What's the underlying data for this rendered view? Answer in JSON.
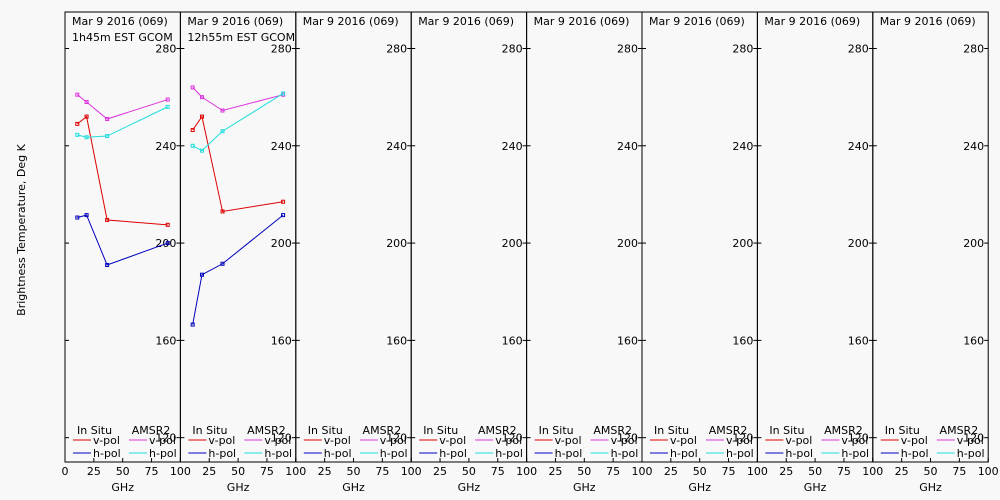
{
  "ylabel": "Brightness Temperature, Deg K",
  "xlabel": "GHz",
  "colors": {
    "insitu_v": "#dd0000",
    "insitu_h": "#0000bb",
    "amsr2_v": "#dd33dd",
    "amsr2_h": "#22dddd",
    "axis": "#000000",
    "background": "#f8f8f8"
  },
  "legend": {
    "insitu": "In Situ",
    "amsr2": "AMSR2",
    "vpol": "v-pol",
    "hpol": "h-pol"
  },
  "chart_data": [
    {
      "type": "line",
      "title": "Mar 9 2016 (069)",
      "subtitle": "1h45m EST GCOM",
      "xlim": [
        0,
        100
      ],
      "ylim": [
        110,
        295
      ],
      "yticks": [
        120,
        160,
        200,
        240,
        280
      ],
      "xticks": [
        0,
        25,
        50,
        75,
        100
      ],
      "series": [
        {
          "name": "In Situ v-pol",
          "x": [
            10.65,
            18.7,
            36.5,
            89
          ],
          "y": [
            249,
            252,
            209.5,
            207.5
          ]
        },
        {
          "name": "In Situ h-pol",
          "x": [
            10.65,
            18.7,
            36.5,
            89
          ],
          "y": [
            210.5,
            211.5,
            191,
            200
          ]
        },
        {
          "name": "AMSR2 v-pol",
          "x": [
            10.65,
            18.7,
            36.5,
            89
          ],
          "y": [
            261,
            258,
            251,
            259
          ]
        },
        {
          "name": "AMSR2 h-pol",
          "x": [
            10.65,
            18.7,
            36.5,
            89
          ],
          "y": [
            244.5,
            243.5,
            244,
            256
          ]
        }
      ]
    },
    {
      "type": "line",
      "title": "Mar 9 2016 (069)",
      "subtitle": "12h55m EST GCOM",
      "xlim": [
        0,
        100
      ],
      "ylim": [
        110,
        295
      ],
      "yticks": [
        120,
        160,
        200,
        240,
        280
      ],
      "xticks": [
        0,
        25,
        50,
        75,
        100
      ],
      "series": [
        {
          "name": "In Situ v-pol",
          "x": [
            10.65,
            18.7,
            36.5,
            89
          ],
          "y": [
            246.5,
            252,
            213,
            217
          ]
        },
        {
          "name": "In Situ h-pol",
          "x": [
            10.65,
            18.7,
            36.5,
            89
          ],
          "y": [
            166.5,
            187,
            191.5,
            211.5
          ]
        },
        {
          "name": "AMSR2 v-pol",
          "x": [
            10.65,
            18.7,
            36.5,
            89
          ],
          "y": [
            264,
            260,
            254.5,
            261
          ]
        },
        {
          "name": "AMSR2 h-pol",
          "x": [
            10.65,
            18.7,
            36.5,
            89
          ],
          "y": [
            240,
            238,
            246,
            261.5
          ]
        }
      ]
    },
    {
      "type": "line",
      "title": "Mar 9 2016 (069)",
      "subtitle": "",
      "xlim": [
        0,
        100
      ],
      "ylim": [
        110,
        295
      ],
      "yticks": [
        120,
        160,
        200,
        240,
        280
      ],
      "xticks": [
        0,
        25,
        50,
        75,
        100
      ],
      "series": []
    },
    {
      "type": "line",
      "title": "Mar 9 2016 (069)",
      "subtitle": "",
      "xlim": [
        0,
        100
      ],
      "ylim": [
        110,
        295
      ],
      "yticks": [
        120,
        160,
        200,
        240,
        280
      ],
      "xticks": [
        0,
        25,
        50,
        75,
        100
      ],
      "series": []
    },
    {
      "type": "line",
      "title": "Mar 9 2016 (069)",
      "subtitle": "",
      "xlim": [
        0,
        100
      ],
      "ylim": [
        110,
        295
      ],
      "yticks": [
        120,
        160,
        200,
        240,
        280
      ],
      "xticks": [
        0,
        25,
        50,
        75,
        100
      ],
      "series": []
    },
    {
      "type": "line",
      "title": "Mar 9 2016 (069)",
      "subtitle": "",
      "xlim": [
        0,
        100
      ],
      "ylim": [
        110,
        295
      ],
      "yticks": [
        120,
        160,
        200,
        240,
        280
      ],
      "xticks": [
        0,
        25,
        50,
        75,
        100
      ],
      "series": []
    },
    {
      "type": "line",
      "title": "Mar 9 2016 (069)",
      "subtitle": "",
      "xlim": [
        0,
        100
      ],
      "ylim": [
        110,
        295
      ],
      "yticks": [
        120,
        160,
        200,
        240,
        280
      ],
      "xticks": [
        0,
        25,
        50,
        75,
        100
      ],
      "series": []
    },
    {
      "type": "line",
      "title": "Mar 9 2016 (069)",
      "subtitle": "",
      "xlim": [
        0,
        100
      ],
      "ylim": [
        110,
        295
      ],
      "yticks": [
        120,
        160,
        200,
        240,
        280
      ],
      "xticks": [
        0,
        25,
        50,
        75,
        100
      ],
      "series": []
    }
  ]
}
